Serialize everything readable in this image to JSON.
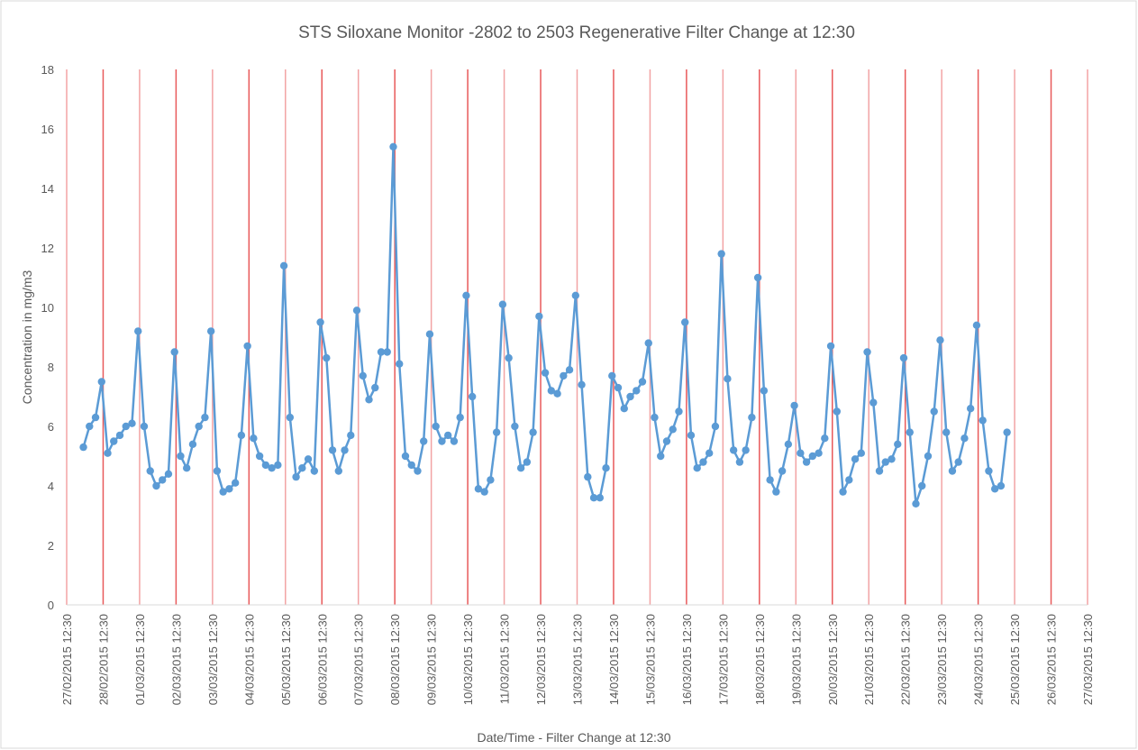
{
  "chart_data": {
    "type": "line",
    "title": "STS Siloxane Monitor -2802 to 2503 Regenerative Filter Change at 12:30",
    "xlabel": "Date/Time - Filter Change at 12:30",
    "ylabel": "Concentration in mg/m3",
    "color": "#5b9bd5",
    "xgrid": true,
    "grid_color": "#e8595a",
    "ylim": [
      0,
      18
    ],
    "yticks": [
      0,
      2,
      4,
      6,
      8,
      10,
      12,
      14,
      16,
      18
    ],
    "xlim": [
      "2015-02-27T12:30",
      "2015-03-27T12:30"
    ],
    "xticks": [
      {
        "value": "2015-02-27T12:30",
        "label": "27/02/2015 12:30"
      },
      {
        "value": "2015-02-28T12:30",
        "label": "28/02/2015 12:30"
      },
      {
        "value": "2015-03-01T12:30",
        "label": "01/03/2015 12:30"
      },
      {
        "value": "2015-03-02T12:30",
        "label": "02/03/2015 12:30"
      },
      {
        "value": "2015-03-03T12:30",
        "label": "03/03/2015 12:30"
      },
      {
        "value": "2015-03-04T12:30",
        "label": "04/03/2015 12:30"
      },
      {
        "value": "2015-03-05T12:30",
        "label": "05/03/2015 12:30"
      },
      {
        "value": "2015-03-06T12:30",
        "label": "06/03/2015 12:30"
      },
      {
        "value": "2015-03-07T12:30",
        "label": "07/03/2015 12:30"
      },
      {
        "value": "2015-03-08T12:30",
        "label": "08/03/2015 12:30"
      },
      {
        "value": "2015-03-09T12:30",
        "label": "09/03/2015 12:30"
      },
      {
        "value": "2015-03-10T12:30",
        "label": "10/03/2015 12:30"
      },
      {
        "value": "2015-03-11T12:30",
        "label": "11/03/2015 12:30"
      },
      {
        "value": "2015-03-12T12:30",
        "label": "12/03/2015 12:30"
      },
      {
        "value": "2015-03-13T12:30",
        "label": "13/03/2015 12:30"
      },
      {
        "value": "2015-03-14T12:30",
        "label": "14/03/2015 12:30"
      },
      {
        "value": "2015-03-15T12:30",
        "label": "15/03/2015 12:30"
      },
      {
        "value": "2015-03-16T12:30",
        "label": "16/03/2015 12:30"
      },
      {
        "value": "2015-03-17T12:30",
        "label": "17/03/2015 12:30"
      },
      {
        "value": "2015-03-18T12:30",
        "label": "18/03/2015 12:30"
      },
      {
        "value": "2015-03-19T12:30",
        "label": "19/03/2015 12:30"
      },
      {
        "value": "2015-03-20T12:30",
        "label": "20/03/2015 12:30"
      },
      {
        "value": "2015-03-21T12:30",
        "label": "21/03/2015 12:30"
      },
      {
        "value": "2015-03-22T12:30",
        "label": "22/03/2015 12:30"
      },
      {
        "value": "2015-03-23T12:30",
        "label": "23/03/2015 12:30"
      },
      {
        "value": "2015-03-24T12:30",
        "label": "24/03/2015 12:30"
      },
      {
        "value": "2015-03-25T12:30",
        "label": "25/03/2015 12:30"
      },
      {
        "value": "2015-03-26T12:30",
        "label": "26/03/2015 12:30"
      },
      {
        "value": "2015-03-27T12:30",
        "label": "27/03/2015 12:30"
      }
    ],
    "x": [
      "2015-02-27T23:30",
      "2015-02-28T03:30",
      "2015-02-28T07:30",
      "2015-02-28T11:30",
      "2015-02-28T15:30",
      "2015-02-28T19:30",
      "2015-02-28T23:30",
      "2015-03-01T03:30",
      "2015-03-01T07:30",
      "2015-03-01T11:30",
      "2015-03-01T15:30",
      "2015-03-01T19:30",
      "2015-03-01T23:30",
      "2015-03-02T03:30",
      "2015-03-02T07:30",
      "2015-03-02T11:30",
      "2015-03-02T15:30",
      "2015-03-02T19:30",
      "2015-03-02T23:30",
      "2015-03-03T03:30",
      "2015-03-03T07:30",
      "2015-03-03T11:30",
      "2015-03-03T15:30",
      "2015-03-03T19:30",
      "2015-03-03T23:30",
      "2015-03-04T03:30",
      "2015-03-04T07:30",
      "2015-03-04T11:30",
      "2015-03-04T15:30",
      "2015-03-04T19:30",
      "2015-03-04T23:30",
      "2015-03-05T03:30",
      "2015-03-05T07:30",
      "2015-03-05T11:30",
      "2015-03-05T15:30",
      "2015-03-05T19:30",
      "2015-03-05T23:30",
      "2015-03-06T03:30",
      "2015-03-06T07:30",
      "2015-03-06T11:30",
      "2015-03-06T15:30",
      "2015-03-06T19:30",
      "2015-03-06T23:30",
      "2015-03-07T03:30",
      "2015-03-07T07:30",
      "2015-03-07T11:30",
      "2015-03-07T15:30",
      "2015-03-07T19:30",
      "2015-03-07T23:30",
      "2015-03-08T03:30",
      "2015-03-08T07:30",
      "2015-03-08T11:30",
      "2015-03-08T15:30",
      "2015-03-08T19:30",
      "2015-03-08T23:30",
      "2015-03-09T03:30",
      "2015-03-09T07:30",
      "2015-03-09T11:30",
      "2015-03-09T15:30",
      "2015-03-09T19:30",
      "2015-03-09T23:30",
      "2015-03-10T03:30",
      "2015-03-10T07:30",
      "2015-03-10T11:30",
      "2015-03-10T15:30",
      "2015-03-10T19:30",
      "2015-03-10T23:30",
      "2015-03-11T03:30",
      "2015-03-11T07:30",
      "2015-03-11T11:30",
      "2015-03-11T15:30",
      "2015-03-11T19:30",
      "2015-03-11T23:30",
      "2015-03-12T03:30",
      "2015-03-12T07:30",
      "2015-03-12T11:30",
      "2015-03-12T15:30",
      "2015-03-12T19:30",
      "2015-03-12T23:30",
      "2015-03-13T03:30",
      "2015-03-13T07:30",
      "2015-03-13T11:30",
      "2015-03-13T15:30",
      "2015-03-13T19:30",
      "2015-03-13T23:30",
      "2015-03-14T03:30",
      "2015-03-14T07:30",
      "2015-03-14T11:30",
      "2015-03-14T15:30",
      "2015-03-14T19:30",
      "2015-03-14T23:30",
      "2015-03-15T03:30",
      "2015-03-15T07:30",
      "2015-03-15T11:30",
      "2015-03-15T15:30",
      "2015-03-15T19:30",
      "2015-03-15T23:30",
      "2015-03-16T03:30",
      "2015-03-16T07:30",
      "2015-03-16T11:30",
      "2015-03-16T15:30",
      "2015-03-16T19:30",
      "2015-03-16T23:30",
      "2015-03-17T03:30",
      "2015-03-17T07:30",
      "2015-03-17T11:30",
      "2015-03-17T15:30",
      "2015-03-17T19:30",
      "2015-03-17T23:30",
      "2015-03-18T03:30",
      "2015-03-18T07:30",
      "2015-03-18T11:30",
      "2015-03-18T15:30",
      "2015-03-18T19:30",
      "2015-03-18T23:30",
      "2015-03-19T03:30",
      "2015-03-19T07:30",
      "2015-03-19T11:30",
      "2015-03-19T15:30",
      "2015-03-19T19:30",
      "2015-03-19T23:30",
      "2015-03-20T03:30",
      "2015-03-20T07:30",
      "2015-03-20T11:30",
      "2015-03-20T15:30",
      "2015-03-20T19:30",
      "2015-03-20T23:30",
      "2015-03-21T03:30",
      "2015-03-21T07:30",
      "2015-03-21T11:30",
      "2015-03-21T15:30",
      "2015-03-21T19:30",
      "2015-03-21T23:30",
      "2015-03-22T03:30",
      "2015-03-22T07:30",
      "2015-03-22T11:30",
      "2015-03-22T15:30",
      "2015-03-22T19:30",
      "2015-03-22T23:30",
      "2015-03-23T03:30",
      "2015-03-23T07:30",
      "2015-03-23T11:30",
      "2015-03-23T15:30",
      "2015-03-23T19:30",
      "2015-03-23T23:30",
      "2015-03-24T03:30",
      "2015-03-24T07:30",
      "2015-03-24T11:30",
      "2015-03-24T15:30",
      "2015-03-24T19:30",
      "2015-03-24T23:30",
      "2015-03-25T03:30",
      "2015-03-25T07:30"
    ],
    "values": [
      5.3,
      6.0,
      6.3,
      7.5,
      5.1,
      5.5,
      5.7,
      6.0,
      6.1,
      9.2,
      6.0,
      4.5,
      4.0,
      4.2,
      4.4,
      8.5,
      5.0,
      4.6,
      5.4,
      6.0,
      6.3,
      9.2,
      4.5,
      3.8,
      3.9,
      4.1,
      5.7,
      8.7,
      5.6,
      5.0,
      4.7,
      4.6,
      4.7,
      11.4,
      6.3,
      4.3,
      4.6,
      4.9,
      4.5,
      9.5,
      8.3,
      5.2,
      4.5,
      5.2,
      5.7,
      9.9,
      7.7,
      6.9,
      7.3,
      8.5,
      8.5,
      15.4,
      8.1,
      5.0,
      4.7,
      4.5,
      5.5,
      9.1,
      6.0,
      5.5,
      5.7,
      5.5,
      6.3,
      10.4,
      7.0,
      3.9,
      3.8,
      4.2,
      5.8,
      10.1,
      8.3,
      6.0,
      4.6,
      4.8,
      5.8,
      9.7,
      7.8,
      7.2,
      7.1,
      7.7,
      7.9,
      10.4,
      7.4,
      4.3,
      3.6,
      3.6,
      4.6,
      7.7,
      7.3,
      6.6,
      7.0,
      7.2,
      7.5,
      8.8,
      6.3,
      5.0,
      5.5,
      5.9,
      6.5,
      9.5,
      5.7,
      4.6,
      4.8,
      5.1,
      6.0,
      11.8,
      7.6,
      5.2,
      4.8,
      5.2,
      6.3,
      11.0,
      7.2,
      4.2,
      3.8,
      4.5,
      5.4,
      6.7,
      5.1,
      4.8,
      5.0,
      5.1,
      5.6,
      8.7,
      6.5,
      3.8,
      4.2,
      4.9,
      5.1,
      8.5,
      6.8,
      4.5,
      4.8,
      4.9,
      5.4,
      8.3,
      5.8,
      3.4,
      4.0,
      5.0,
      6.5,
      8.9,
      5.8,
      4.5,
      4.8,
      5.6,
      6.6,
      9.4,
      6.2,
      4.5,
      3.9,
      4.0,
      5.8
    ]
  }
}
